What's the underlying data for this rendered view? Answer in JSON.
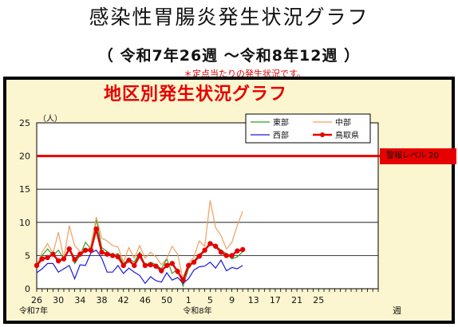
{
  "page": {
    "title": "感染性胃腸炎発生状況グラフ",
    "period": "（ 令和7年26週 ～令和8年12週 ）",
    "note": "＊定点当たりの発生状況です。"
  },
  "chart_data": {
    "type": "line",
    "title": "地区別発生状況グラフ",
    "ylabel": "（人）",
    "xlabel": "週",
    "ylim": [
      0,
      25
    ],
    "yticks": [
      0,
      5,
      10,
      15,
      20,
      25
    ],
    "xticks": [
      "26",
      "30",
      "34",
      "38",
      "42",
      "46",
      "50",
      "1",
      "5",
      "9",
      "13",
      "17",
      "21",
      "25"
    ],
    "era_labels": [
      "令和7年",
      "令和8年"
    ],
    "categories": [
      "26",
      "27",
      "28",
      "29",
      "30",
      "31",
      "32",
      "33",
      "34",
      "35",
      "36",
      "37",
      "38",
      "39",
      "40",
      "41",
      "42",
      "43",
      "44",
      "45",
      "46",
      "47",
      "48",
      "49",
      "50",
      "51",
      "52",
      "1",
      "2",
      "3",
      "4",
      "5",
      "6",
      "7",
      "8",
      "9",
      "10",
      "11",
      "12"
    ],
    "series": [
      {
        "name": "東部",
        "color": "#2f9e2f",
        "values": [
          3.6,
          5.0,
          6.0,
          5.0,
          5.8,
          4.5,
          6.0,
          3.8,
          5.0,
          7.0,
          6.0,
          10.5,
          6.2,
          5.6,
          5.0,
          5.3,
          3.8,
          4.5,
          4.0,
          5.5,
          3.5,
          4.0,
          3.6,
          3.0,
          4.5,
          2.3,
          3.0,
          0.4,
          3.0,
          4.2,
          5.2,
          5.8,
          7.0,
          6.5,
          5.8,
          5.3,
          4.5,
          4.8,
          5.6
        ]
      },
      {
        "name": "中部",
        "color": "#f0a060",
        "values": [
          3.5,
          5.5,
          6.8,
          5.3,
          8.5,
          4.6,
          9.5,
          6.5,
          5.6,
          5.5,
          6.5,
          10.8,
          7.6,
          7.2,
          6.5,
          6.3,
          4.0,
          6.2,
          4.6,
          6.5,
          4.6,
          5.5,
          4.8,
          3.6,
          4.6,
          6.4,
          5.2,
          1.4,
          3.8,
          4.8,
          7.2,
          6.4,
          13.3,
          9.2,
          8.0,
          6.0,
          7.0,
          9.5,
          11.7
        ]
      },
      {
        "name": "西部",
        "color": "#1a1adc",
        "values": [
          2.4,
          3.0,
          3.8,
          3.8,
          2.5,
          3.0,
          3.5,
          1.5,
          3.6,
          3.5,
          5.4,
          5.8,
          4.6,
          2.5,
          2.5,
          3.5,
          2.3,
          3.1,
          2.5,
          2.0,
          0.8,
          1.8,
          1.2,
          1.0,
          2.4,
          1.3,
          1.7,
          0.8,
          1.5,
          2.8,
          3.3,
          3.4,
          4.0,
          3.1,
          4.3,
          2.7,
          3.2,
          3.0,
          3.5
        ]
      },
      {
        "name": "鳥取県",
        "color": "#e60000",
        "values": [
          3.5,
          4.5,
          4.7,
          5.2,
          4.2,
          4.5,
          6.0,
          4.4,
          5.2,
          5.8,
          5.8,
          9.0,
          5.5,
          5.2,
          5.0,
          4.8,
          3.5,
          4.3,
          3.5,
          5.0,
          3.5,
          3.6,
          3.4,
          2.7,
          3.5,
          3.8,
          2.6,
          1.3,
          3.5,
          4.0,
          4.9,
          5.8,
          6.8,
          6.4,
          5.5,
          5.0,
          5.0,
          5.7,
          5.9
        ]
      }
    ],
    "threshold": {
      "value": 20,
      "label": "警報レベル 20",
      "color": "#e60000"
    },
    "grid": "horizontal",
    "legend_position": "top-right"
  }
}
